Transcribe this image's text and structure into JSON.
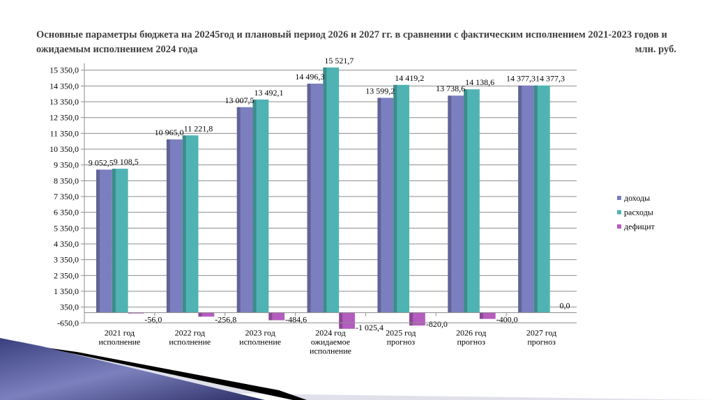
{
  "chart_data": {
    "type": "bar",
    "title": "Основные параметры бюджета на 20245год и плановый период 2026 и 2027 гг. в сравнении с фактическим исполнением 2021-2023 годов и ожидаемым исполнением 2024 года",
    "unit": "млн. руб.",
    "categories": [
      [
        "2021 год",
        "исполнение"
      ],
      [
        "2022 год",
        "исполнение"
      ],
      [
        "2023 год",
        "исполнение"
      ],
      [
        "2024 год",
        "ожидаемое",
        "исполнение"
      ],
      [
        "2025 год",
        "прогноз"
      ],
      [
        "2026 год",
        "прогноз"
      ],
      [
        "2027 год",
        "прогноз"
      ]
    ],
    "series": [
      {
        "name": "доходы",
        "color": "#7b7fc0",
        "values": [
          9052.5,
          10965.0,
          13007.5,
          14496.3,
          13599.2,
          13738.6,
          14377.3
        ],
        "labels": [
          "9 052,5",
          "10 965,0",
          "13 007,5",
          "14 496,3",
          "13 599,2",
          "13 738,6",
          "14 377,3"
        ]
      },
      {
        "name": "расходы",
        "color": "#4fb3b3",
        "values": [
          9108.5,
          11221.8,
          13492.1,
          15521.7,
          14419.2,
          14138.6,
          14377.3
        ],
        "labels": [
          "9 108,5",
          "11 221,8",
          "13 492,1",
          "15 521,7",
          "14 419,2",
          "14 138,6",
          "14 377,3"
        ]
      },
      {
        "name": "дефицит",
        "color": "#b45cbf",
        "values": [
          -56.0,
          -256.8,
          -484.6,
          -1025.4,
          -820.0,
          -400.0,
          0.0
        ],
        "labels": [
          "-56,0",
          "-256,8",
          "-484,6",
          "-1 025,4",
          "-820,0",
          "-400,0",
          "0,0"
        ]
      }
    ],
    "ylim": [
      -650,
      15350
    ],
    "yticks": [
      -650,
      350,
      1350,
      2350,
      3350,
      4350,
      5350,
      6350,
      7350,
      8350,
      9350,
      10350,
      11350,
      12350,
      13350,
      14350,
      15350
    ],
    "ytick_labels": [
      "-650,0",
      "350,0",
      "1 350,0",
      "2 350,0",
      "3 350,0",
      "4 350,0",
      "5 350,0",
      "6 350,0",
      "7 350,0",
      "8 350,0",
      "9 350,0",
      "10 350,0",
      "11 350,0",
      "12 350,0",
      "13 350,0",
      "14 350,0",
      "15 350,0"
    ],
    "grid": true,
    "legend": "right"
  }
}
